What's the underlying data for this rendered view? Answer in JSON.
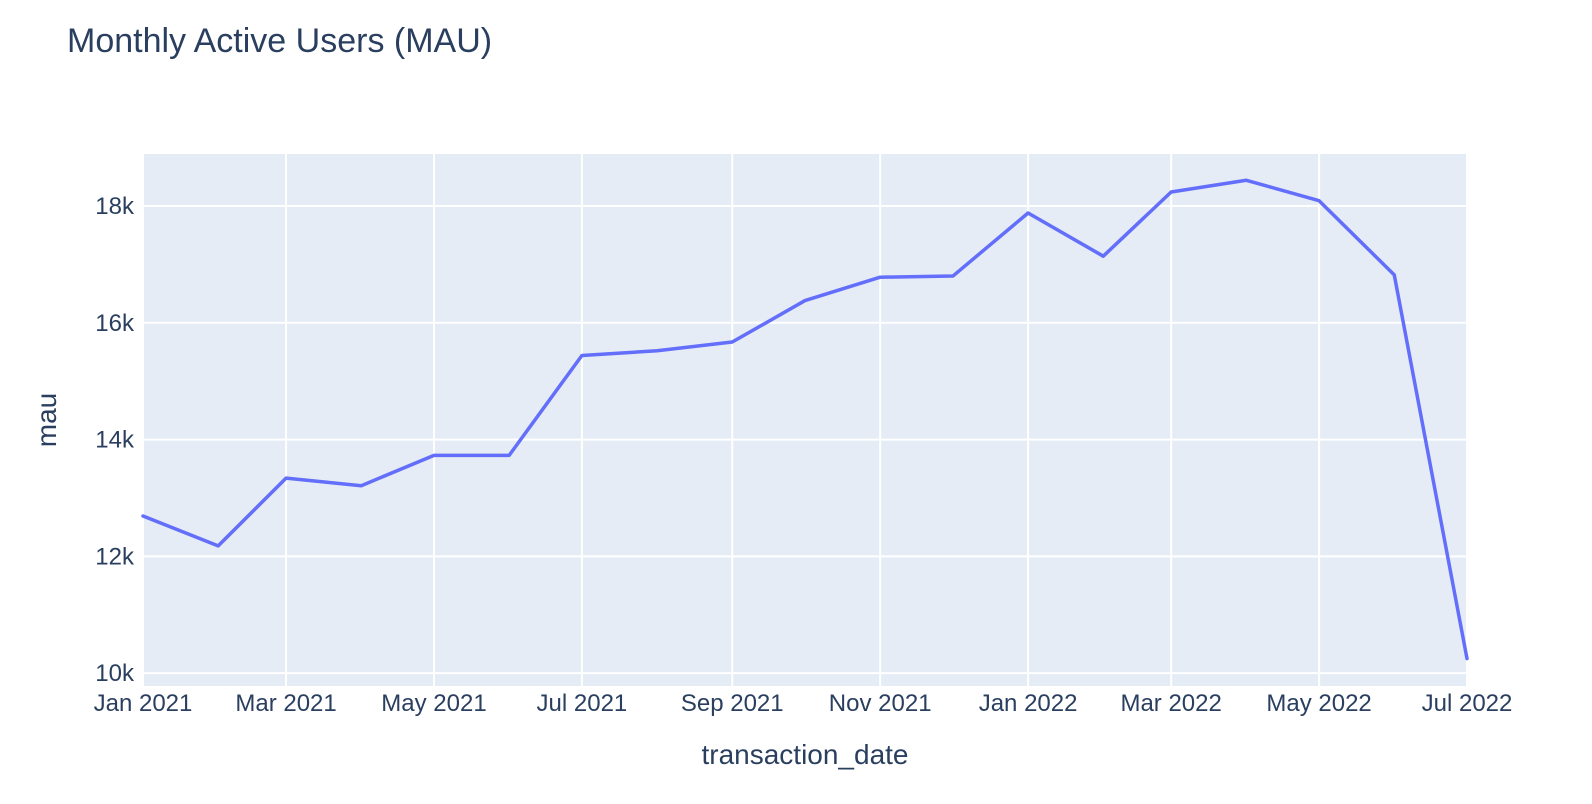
{
  "chart_data": {
    "type": "line",
    "title": "Monthly Active Users (MAU)",
    "xlabel": "transaction_date",
    "ylabel": "mau",
    "x": [
      "2021-01-01",
      "2021-02-01",
      "2021-03-01",
      "2021-04-01",
      "2021-05-01",
      "2021-06-01",
      "2021-07-01",
      "2021-08-01",
      "2021-09-01",
      "2021-10-01",
      "2021-11-01",
      "2021-12-01",
      "2022-01-01",
      "2022-02-01",
      "2022-03-01",
      "2022-04-01",
      "2022-05-01",
      "2022-06-01",
      "2022-07-01"
    ],
    "series": [
      {
        "values": [
          12690,
          12180,
          13340,
          13210,
          13730,
          13730,
          15440,
          15520,
          15670,
          16380,
          16780,
          16800,
          17880,
          17140,
          18240,
          18440,
          18090,
          16820,
          10250
        ]
      }
    ],
    "xlim": [
      "2021-01-01",
      "2022-07-01"
    ],
    "ylim": [
      9780,
      18890
    ],
    "x_ticks": [
      "2021-01-01",
      "2021-03-01",
      "2021-05-01",
      "2021-07-01",
      "2021-09-01",
      "2021-11-01",
      "2022-01-01",
      "2022-03-01",
      "2022-05-01",
      "2022-07-01"
    ],
    "x_tick_labels": [
      "Jan 2021",
      "Mar 2021",
      "May 2021",
      "Jul 2021",
      "Sep 2021",
      "Nov 2021",
      "Jan 2022",
      "Mar 2022",
      "May 2022",
      "Jul 2022"
    ],
    "y_ticks": [
      10000,
      12000,
      14000,
      16000,
      18000
    ],
    "y_tick_labels": [
      "10k",
      "12k",
      "14k",
      "16k",
      "18k"
    ],
    "grid": true,
    "line_color": "#636efa",
    "plot_bg": "#e5ecf6",
    "grid_color": "#ffffff"
  }
}
